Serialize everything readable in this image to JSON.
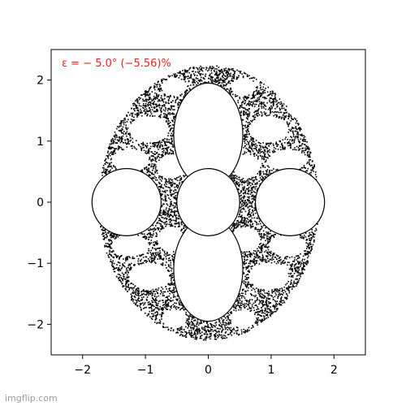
{
  "chart_data": {
    "type": "scatter",
    "title": "",
    "xlabel": "",
    "ylabel": "",
    "xlim": [
      -2.5,
      2.5
    ],
    "ylim": [
      -2.5,
      2.5
    ],
    "x_ticks": [
      -2,
      -1,
      0,
      1,
      2
    ],
    "y_ticks": [
      -2,
      -1,
      0,
      1,
      2
    ],
    "x_tick_labels": [
      "−2",
      "−1",
      "0",
      "1",
      "2"
    ],
    "y_tick_labels": [
      "−2",
      "−1",
      "0",
      "1",
      "2"
    ],
    "grid": false,
    "annotation": "ε = − 5.0° (−5.56)%",
    "annotation_color": "#e8231c",
    "point_color": "#000000",
    "hole_centers": [
      {
        "x": 0,
        "y": 1.1,
        "rx": 0.55,
        "ry": 0.85
      },
      {
        "x": 0,
        "y": -1.1,
        "rx": 0.55,
        "ry": 0.85
      },
      {
        "x": 0,
        "y": 0,
        "rx": 0.5,
        "ry": 0.55
      },
      {
        "x": -1.3,
        "y": 0,
        "rx": 0.55,
        "ry": 0.55
      },
      {
        "x": 1.3,
        "y": 0,
        "rx": 0.55,
        "ry": 0.55
      }
    ]
  },
  "watermark": "imgflip.com"
}
